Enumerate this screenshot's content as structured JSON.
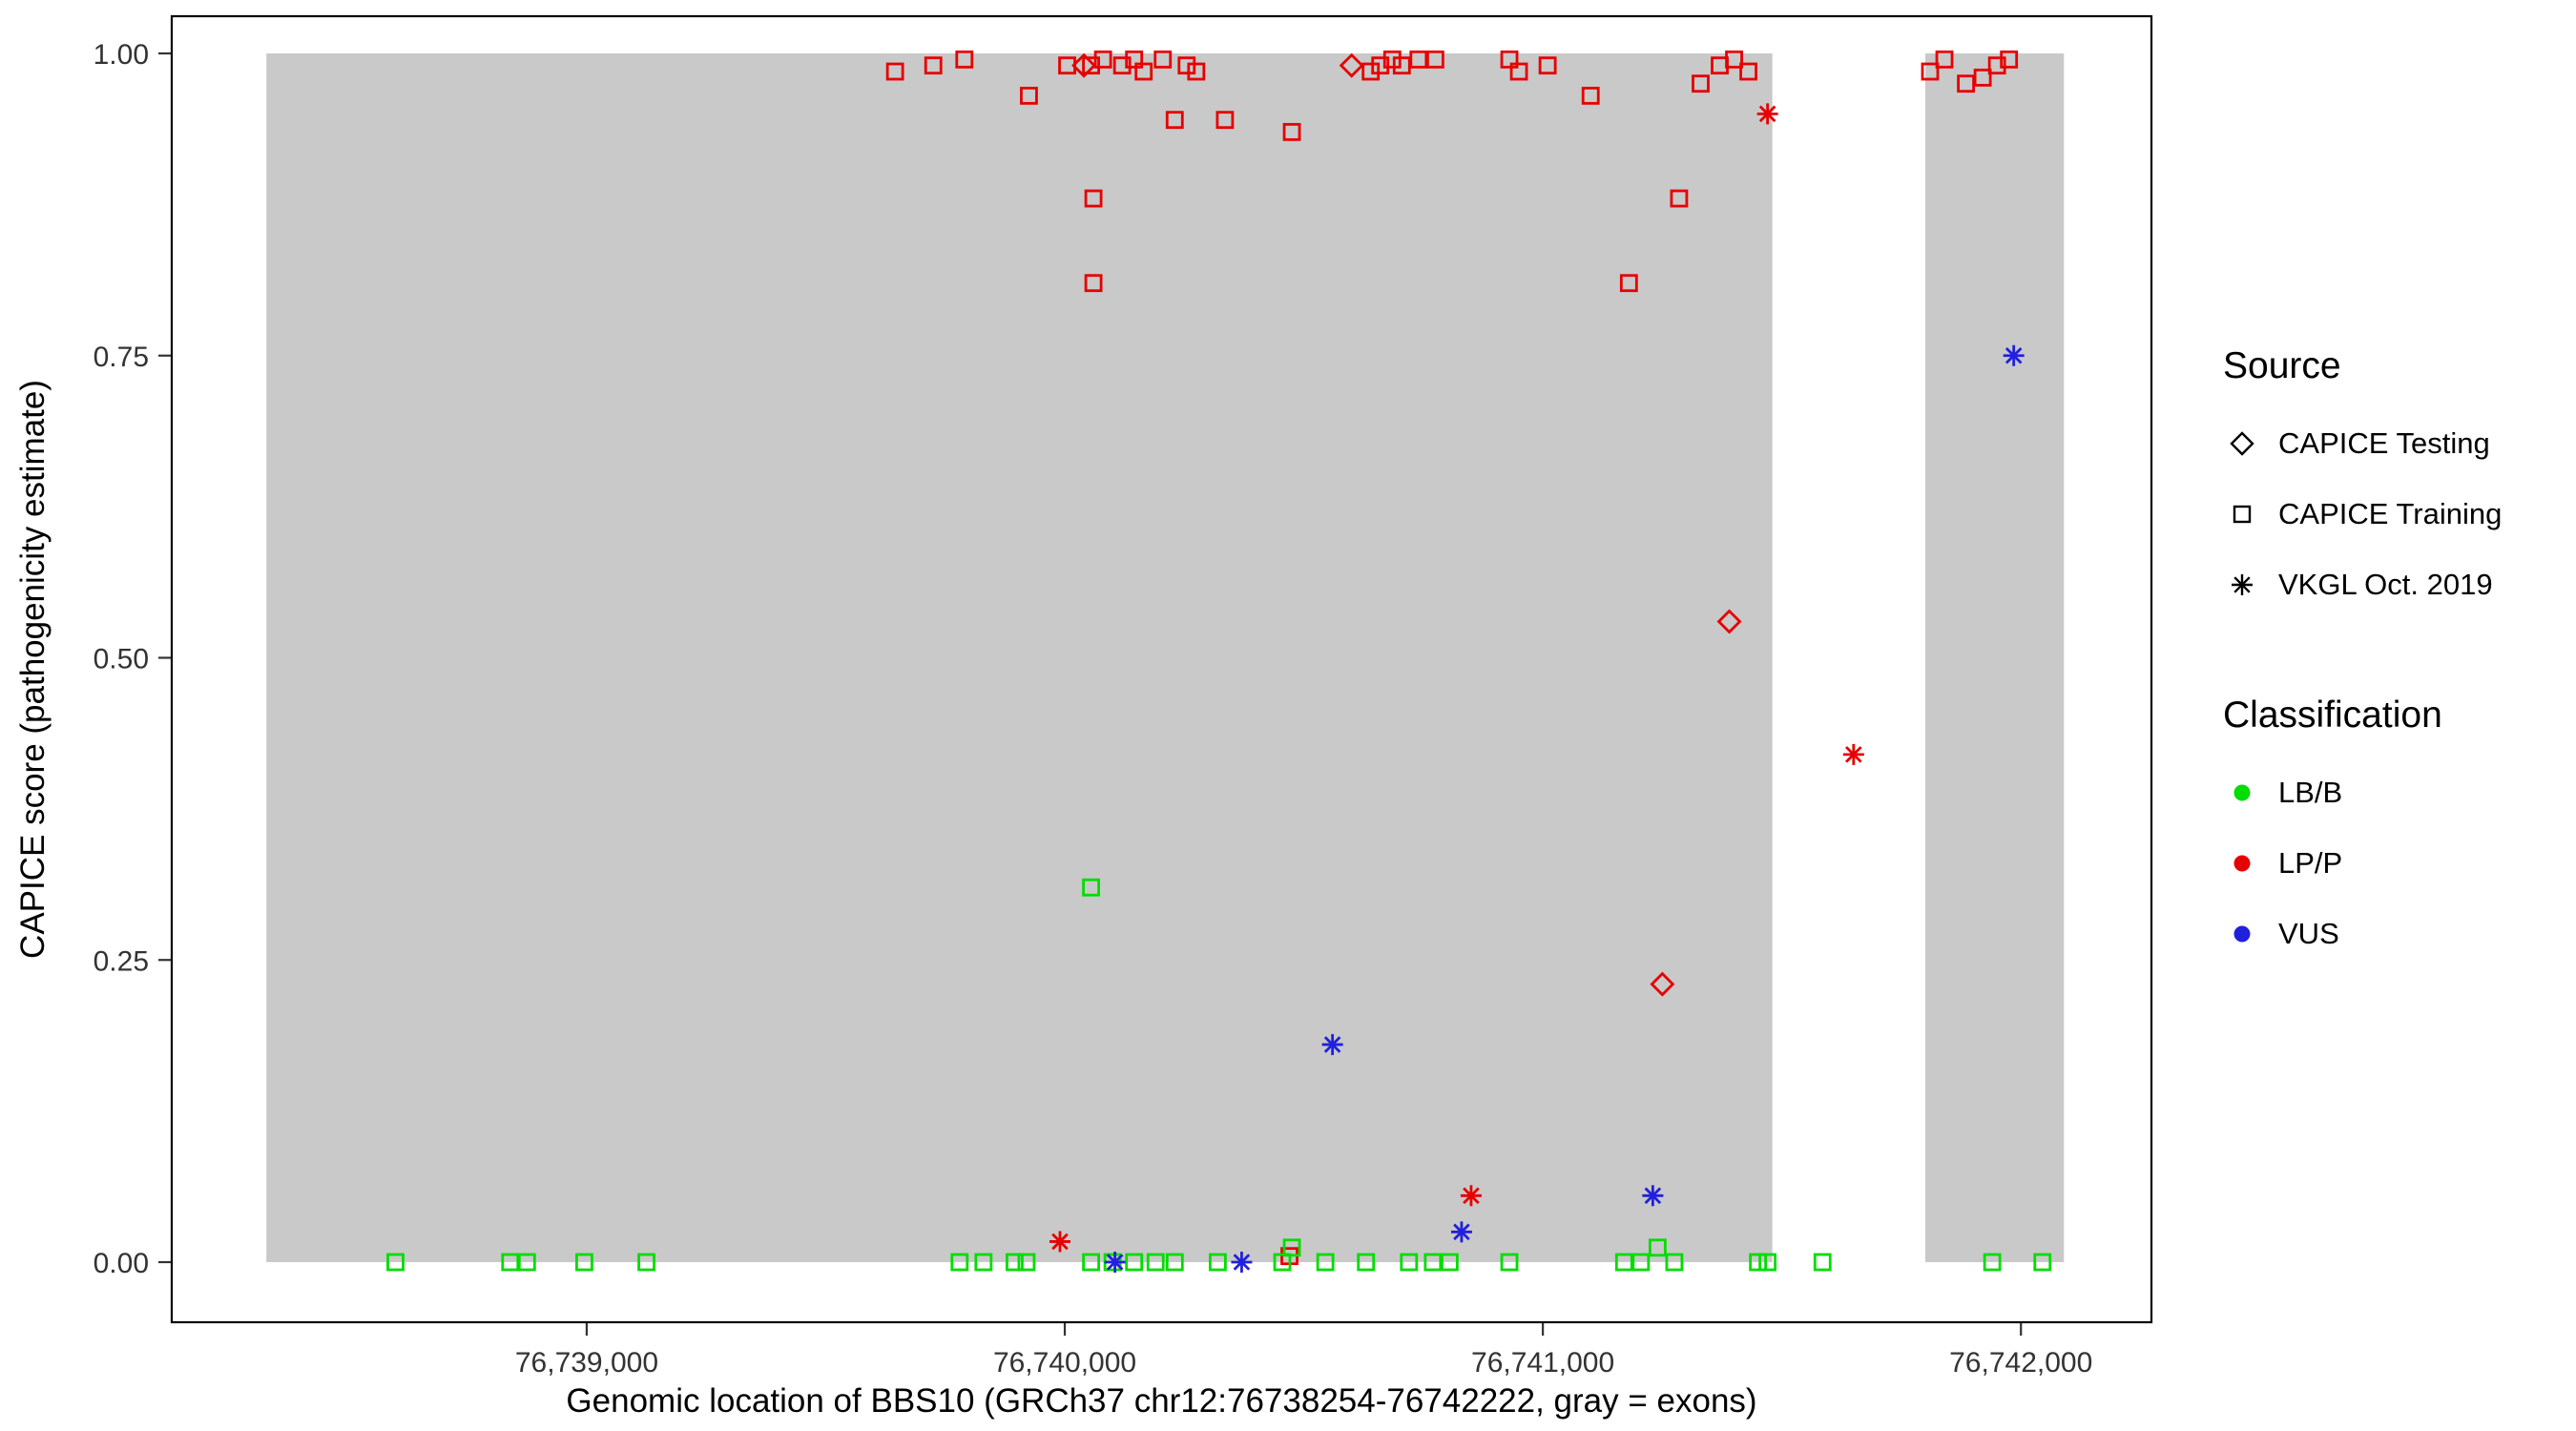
{
  "legend": {
    "source": {
      "title": "Source",
      "items": [
        {
          "label": "CAPICE Testing",
          "marker": "diamond"
        },
        {
          "label": "CAPICE Training",
          "marker": "square"
        },
        {
          "label": "VKGL Oct. 2019",
          "marker": "asterisk"
        }
      ]
    },
    "classification": {
      "title": "Classification",
      "items": [
        {
          "label": "LB/B",
          "color_key": "LB/B"
        },
        {
          "label": "LP/P",
          "color_key": "LP/P"
        },
        {
          "label": "VUS",
          "color_key": "VUS"
        }
      ]
    }
  },
  "chart_data": {
    "type": "scatter",
    "title": "",
    "xlabel": "Genomic location of BBS10 (GRCh37 chr12:76738254-76742222, gray = exons)",
    "ylabel": "CAPICE score (pathogenicity estimate)",
    "x_domain": [
      76738132,
      76742273
    ],
    "y_domain": [
      0,
      1
    ],
    "grid": false,
    "legend_position": "right",
    "x_ticks": [
      {
        "value": 76739000,
        "label": "76,739,000"
      },
      {
        "value": 76740000,
        "label": "76,740,000"
      },
      {
        "value": 76741000,
        "label": "76,741,000"
      },
      {
        "value": 76742000,
        "label": "76,742,000"
      }
    ],
    "y_ticks": [
      {
        "value": 0.0,
        "label": "0.00"
      },
      {
        "value": 0.25,
        "label": "0.25"
      },
      {
        "value": 0.5,
        "label": "0.50"
      },
      {
        "value": 0.75,
        "label": "0.75"
      },
      {
        "value": 1.0,
        "label": "1.00"
      }
    ],
    "exon_color": "#c9c9c9",
    "exons": [
      [
        76738330,
        76741480
      ],
      [
        76741800,
        76742090
      ]
    ],
    "colors": {
      "LB/B": "#00dd00",
      "LP/P": "#e60000",
      "VUS": "#2020dd"
    },
    "series": [
      {
        "name": "CAPICE Training / LP/P",
        "source": "CAPICE Training",
        "classification": "LP/P",
        "marker": "square",
        "points": [
          [
            76739645,
            0.985
          ],
          [
            76739725,
            0.99
          ],
          [
            76739790,
            0.995
          ],
          [
            76739925,
            0.965
          ],
          [
            76740005,
            0.99
          ],
          [
            76740055,
            0.99
          ],
          [
            76740080,
            0.995
          ],
          [
            76740120,
            0.99
          ],
          [
            76740145,
            0.995
          ],
          [
            76740165,
            0.985
          ],
          [
            76740205,
            0.995
          ],
          [
            76740255,
            0.99
          ],
          [
            76740275,
            0.985
          ],
          [
            76740230,
            0.945
          ],
          [
            76740335,
            0.945
          ],
          [
            76740475,
            0.935
          ],
          [
            76740060,
            0.88
          ],
          [
            76740060,
            0.81
          ],
          [
            76740640,
            0.985
          ],
          [
            76740660,
            0.99
          ],
          [
            76740685,
            0.995
          ],
          [
            76740705,
            0.99
          ],
          [
            76740740,
            0.995
          ],
          [
            76740775,
            0.995
          ],
          [
            76740930,
            0.995
          ],
          [
            76740950,
            0.985
          ],
          [
            76741010,
            0.99
          ],
          [
            76741100,
            0.965
          ],
          [
            76741330,
            0.975
          ],
          [
            76741370,
            0.99
          ],
          [
            76741400,
            0.995
          ],
          [
            76741430,
            0.985
          ],
          [
            76741285,
            0.88
          ],
          [
            76741180,
            0.81
          ],
          [
            76740470,
            0.005
          ],
          [
            76741810,
            0.985
          ],
          [
            76741840,
            0.995
          ],
          [
            76741885,
            0.975
          ],
          [
            76741920,
            0.98
          ],
          [
            76741950,
            0.99
          ],
          [
            76741975,
            0.995
          ]
        ]
      },
      {
        "name": "CAPICE Training / LB/B",
        "source": "CAPICE Training",
        "classification": "LB/B",
        "marker": "square",
        "points": [
          [
            76738600,
            0
          ],
          [
            76738840,
            0
          ],
          [
            76738875,
            0
          ],
          [
            76738995,
            0
          ],
          [
            76739125,
            0
          ],
          [
            76739780,
            0
          ],
          [
            76739830,
            0
          ],
          [
            76739895,
            0
          ],
          [
            76739920,
            0
          ],
          [
            76740055,
            0.31
          ],
          [
            76740055,
            0
          ],
          [
            76740100,
            0
          ],
          [
            76740145,
            0
          ],
          [
            76740190,
            0
          ],
          [
            76740230,
            0
          ],
          [
            76740320,
            0
          ],
          [
            76740455,
            0
          ],
          [
            76740475,
            0.012
          ],
          [
            76740545,
            0
          ],
          [
            76740630,
            0
          ],
          [
            76740720,
            0
          ],
          [
            76740770,
            0
          ],
          [
            76740805,
            0
          ],
          [
            76740930,
            0
          ],
          [
            76741170,
            0
          ],
          [
            76741205,
            0
          ],
          [
            76741240,
            0.012
          ],
          [
            76741275,
            0
          ],
          [
            76741450,
            0
          ],
          [
            76741470,
            0
          ],
          [
            76741585,
            0
          ],
          [
            76741940,
            0
          ],
          [
            76742045,
            0
          ]
        ]
      },
      {
        "name": "CAPICE Testing / LP/P",
        "source": "CAPICE Testing",
        "classification": "LP/P",
        "marker": "diamond",
        "points": [
          [
            76740040,
            0.99
          ],
          [
            76740600,
            0.99
          ],
          [
            76741390,
            0.53
          ],
          [
            76741250,
            0.23
          ]
        ]
      },
      {
        "name": "VKGL Oct. 2019 / LP/P",
        "source": "VKGL Oct. 2019",
        "classification": "LP/P",
        "marker": "asterisk",
        "points": [
          [
            76741470,
            0.95
          ],
          [
            76741650,
            0.42
          ],
          [
            76740850,
            0.055
          ],
          [
            76739990,
            0.017
          ]
        ]
      },
      {
        "name": "VKGL Oct. 2019 / VUS",
        "source": "VKGL Oct. 2019",
        "classification": "VUS",
        "marker": "asterisk",
        "points": [
          [
            76741985,
            0.75
          ],
          [
            76740560,
            0.18
          ],
          [
            76741230,
            0.055
          ],
          [
            76740830,
            0.025
          ],
          [
            76740105,
            0.0
          ],
          [
            76740370,
            0.0
          ]
        ]
      }
    ]
  }
}
